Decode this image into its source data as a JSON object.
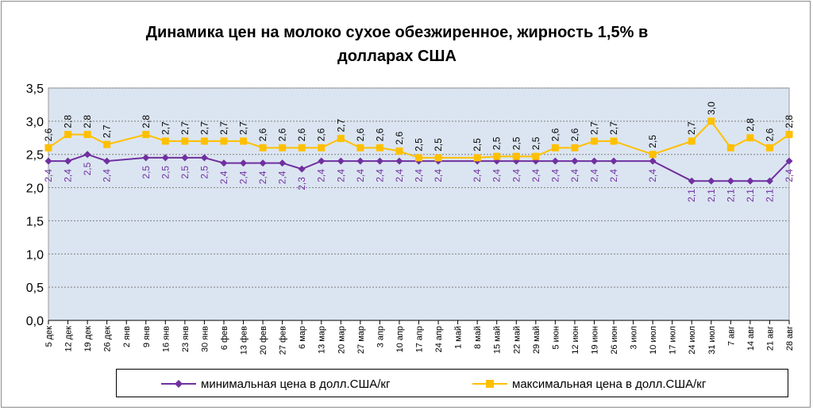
{
  "chart_data": {
    "type": "line",
    "title_lines": [
      "Динамика цен на молоко сухое обезжиренное, жирность 1,5%  в",
      "долларах США"
    ],
    "categories": [
      "5 дек",
      "12 дек",
      "19 дек",
      "26 дек",
      "2 янв",
      "9 янв",
      "16 янв",
      "23 янв",
      "30 янв",
      "6 фев",
      "13 фев",
      "20 фев",
      "27 фев",
      "6 мар",
      "13 мар",
      "20 мар",
      "27 мар",
      "3 апр",
      "10 апр",
      "17 апр",
      "24 апр",
      "1 май",
      "8 май",
      "15 май",
      "22 май",
      "29 май",
      "5 июн",
      "12 июн",
      "19 июн",
      "26 июн",
      "3 июл",
      "10 июл",
      "17 июл",
      "24 июл",
      "31 июл",
      "7 авг",
      "14 авг",
      "21 авг",
      "28 авг"
    ],
    "ylim": [
      0,
      3.5
    ],
    "yticks": [
      "0,0",
      "0,5",
      "1,0",
      "1,5",
      "2,0",
      "2,5",
      "3,0",
      "3,5"
    ],
    "grid": true,
    "legend_position": "bottom",
    "series": [
      {
        "name": "минимальная цена в долл.США/кг",
        "color": "#7030a0",
        "marker": "diamond",
        "label_position": "below",
        "values": [
          2.4,
          2.4,
          2.5,
          2.4,
          null,
          2.45,
          2.45,
          2.45,
          2.45,
          2.37,
          2.37,
          2.37,
          2.37,
          2.28,
          2.4,
          2.4,
          2.4,
          2.4,
          2.4,
          2.4,
          2.4,
          null,
          2.4,
          2.4,
          2.4,
          2.4,
          2.4,
          2.4,
          2.4,
          2.4,
          null,
          2.4,
          null,
          2.1,
          2.1,
          2.1,
          2.1,
          2.1,
          2.4
        ],
        "labels": [
          "2,4",
          "2,4",
          "2,5",
          "2,4",
          "",
          "2,5",
          "2,5",
          "2,5",
          "2,5",
          "2,4",
          "2,4",
          "2,4",
          "2,4",
          "2,3",
          "2,4",
          "2,4",
          "2,4",
          "2,4",
          "2,4",
          "2,4",
          "2,4",
          "",
          "2,4",
          "2,4",
          "2,4",
          "2,4",
          "2,4",
          "2,4",
          "2,4",
          "2,4",
          "",
          "2,4",
          "",
          "2,1",
          "2,1",
          "2,1",
          "2,1",
          "2,1",
          "2,4"
        ]
      },
      {
        "name": "максимальная цена в долл.США/кг",
        "color": "#ffc000",
        "marker": "square",
        "label_position": "above",
        "values": [
          2.6,
          2.8,
          2.8,
          2.65,
          null,
          2.8,
          2.7,
          2.7,
          2.7,
          2.7,
          2.7,
          2.6,
          2.6,
          2.6,
          2.6,
          2.74,
          2.6,
          2.6,
          2.55,
          2.45,
          2.45,
          null,
          2.45,
          2.47,
          2.47,
          2.47,
          2.6,
          2.6,
          2.7,
          2.7,
          null,
          2.5,
          null,
          2.7,
          3.0,
          2.6,
          2.75,
          2.6,
          2.8
        ],
        "labels": [
          "2,6",
          "2,8",
          "2,8",
          "2,7",
          "",
          "2,8",
          "2,7",
          "2,7",
          "2,7",
          "2,7",
          "2,7",
          "2,6",
          "2,6",
          "2,6",
          "2,6",
          "2,7",
          "2,6",
          "2,6",
          "2,6",
          "2,5",
          "2,5",
          "",
          "2,5",
          "2,5",
          "2,5",
          "2,5",
          "2,6",
          "2,6",
          "2,7",
          "2,7",
          "",
          "2,5",
          "",
          "2,7",
          "3,0",
          "",
          "2,8",
          "2,6",
          "2,8"
        ]
      }
    ]
  },
  "legend": {
    "min_label": "минимальная цена в долл.США/кг",
    "max_label": "максимальная цена в долл.США/кг"
  }
}
